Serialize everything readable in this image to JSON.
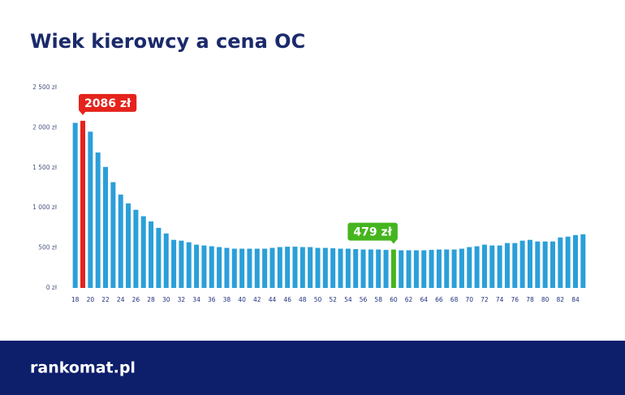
{
  "chart_data": {
    "type": "bar",
    "title": "Wiek kierowcy a cena OC",
    "categories": [
      18,
      null,
      20,
      null,
      22,
      null,
      24,
      null,
      26,
      null,
      28,
      null,
      30,
      null,
      32,
      null,
      34,
      null,
      36,
      null,
      38,
      null,
      40,
      null,
      42,
      null,
      44,
      null,
      46,
      null,
      48,
      null,
      50,
      null,
      52,
      null,
      54,
      null,
      56,
      null,
      58,
      null,
      60,
      null,
      62,
      null,
      64,
      null,
      66,
      null,
      68,
      null,
      70,
      null,
      72,
      null,
      74,
      null,
      76,
      null,
      78,
      null,
      80,
      null,
      82,
      null,
      84,
      null
    ],
    "values": [
      2060,
      2086,
      1950,
      1690,
      1510,
      1320,
      1165,
      1055,
      975,
      895,
      830,
      750,
      680,
      600,
      590,
      570,
      540,
      530,
      520,
      510,
      500,
      490,
      490,
      490,
      490,
      490,
      500,
      510,
      515,
      515,
      510,
      510,
      500,
      500,
      495,
      490,
      490,
      485,
      480,
      480,
      480,
      475,
      479,
      470,
      470,
      470,
      470,
      475,
      480,
      480,
      480,
      490,
      510,
      520,
      540,
      530,
      530,
      560,
      560,
      590,
      600,
      580,
      580,
      580,
      630,
      640,
      660,
      670
    ],
    "color": "#2b9fd9",
    "colors": {
      "1": "#e5231c",
      "42": "#45b51e"
    },
    "value_labels": {
      "1": "2086 zł",
      "42": "479 zł"
    },
    "ylim": [
      0,
      2500
    ],
    "yticks": [
      {
        "value": 0,
        "label": "0 zł"
      },
      {
        "value": 500,
        "label": "500 zł"
      },
      {
        "value": 1000,
        "label": "1 000 zł"
      },
      {
        "value": 1500,
        "label": "1 500 zł"
      },
      {
        "value": 2000,
        "label": "2 000 zł"
      },
      {
        "value": 2500,
        "label": "2 500 zł"
      }
    ],
    "grid": false
  },
  "footer": {
    "logo": "rankomat.pl"
  }
}
